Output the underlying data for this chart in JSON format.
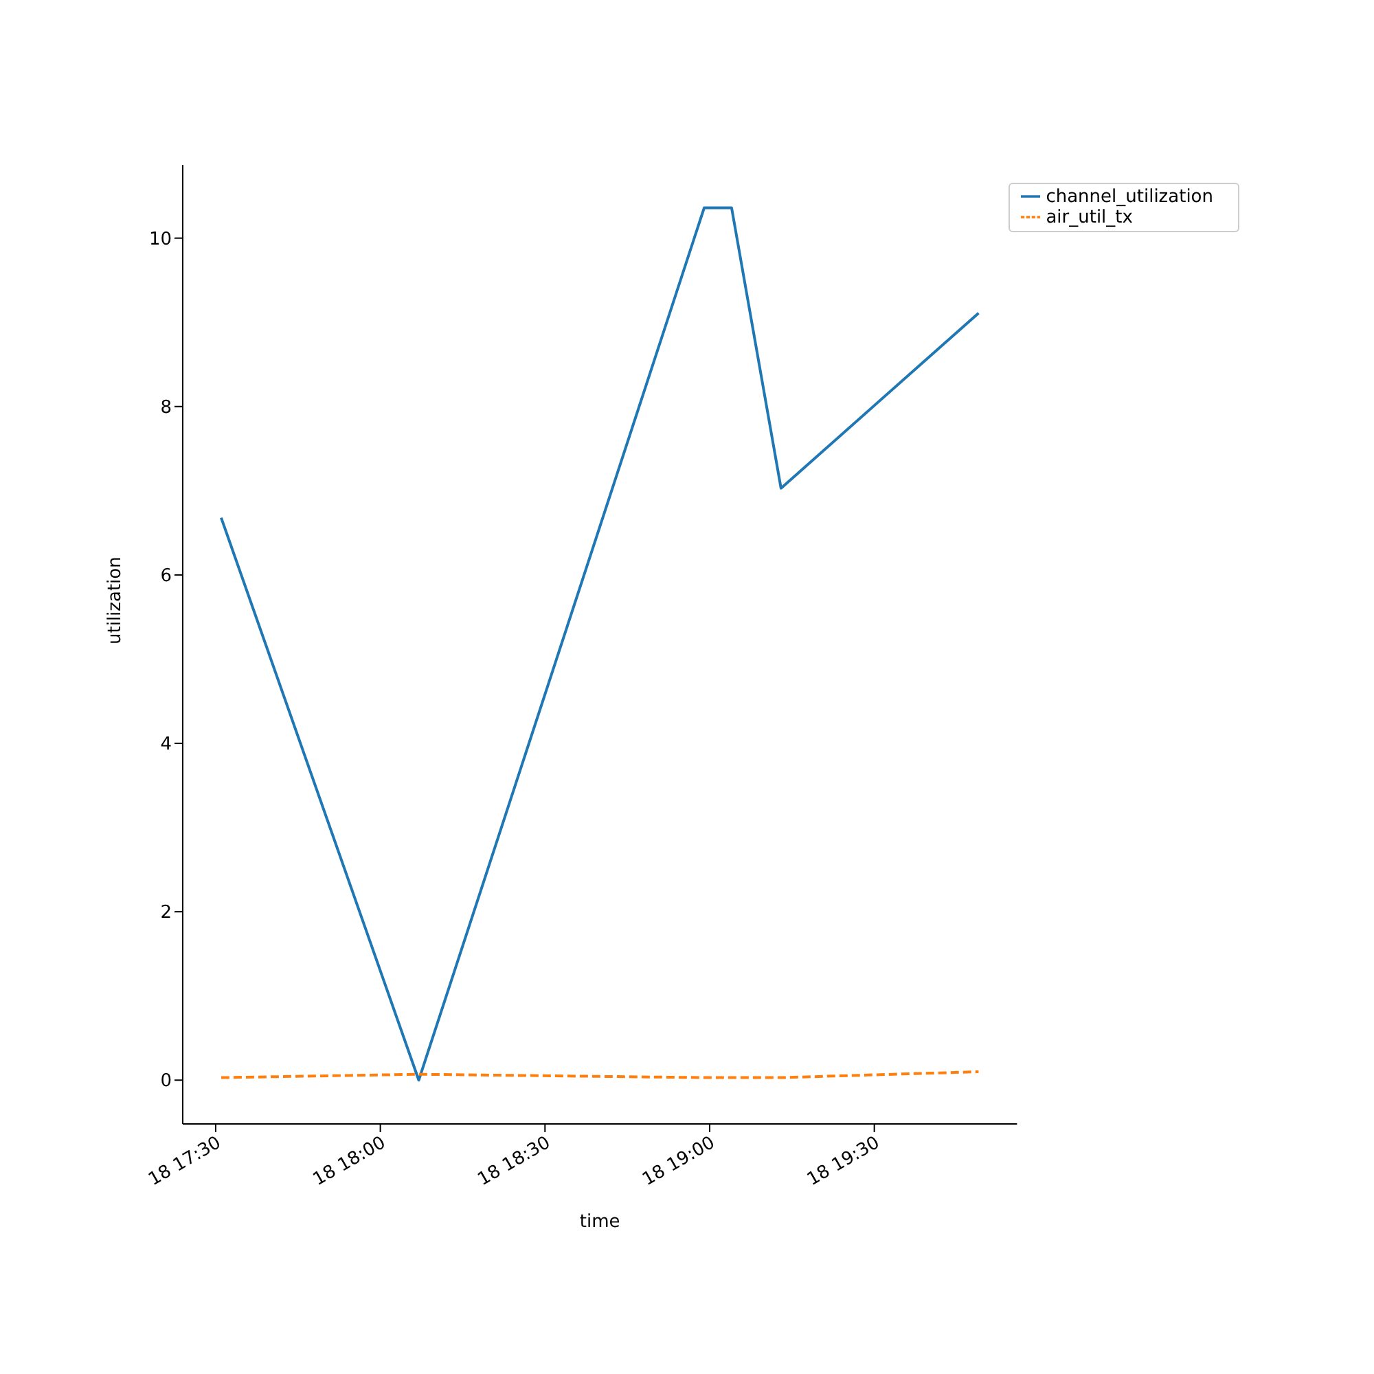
{
  "chart_data": {
    "type": "line",
    "xlabel": "time",
    "ylabel": "utilization",
    "x": [
      "2000-01-18T17:31",
      "2000-01-18T18:07",
      "2000-01-18T18:59",
      "2000-01-18T19:04",
      "2000-01-18T19:13",
      "2000-01-18T19:49"
    ],
    "series": [
      {
        "name": "channel_utilization",
        "color": "#1f77b4",
        "values": [
          6.68,
          0.0,
          10.36,
          10.36,
          7.03,
          9.11
        ],
        "line_style": "solid"
      },
      {
        "name": "air_util_tx",
        "color": "#ff7f0e",
        "values": [
          0.03,
          0.07,
          0.03,
          0.03,
          0.03,
          0.1
        ],
        "line_style": "dashed"
      }
    ],
    "xlim": [
      "2000-01-18T17:24",
      "2000-01-18T19:56"
    ],
    "xticks": [
      {
        "value": "2000-01-18T17:30",
        "label": "18 17:30"
      },
      {
        "value": "2000-01-18T18:00",
        "label": "18 18:00"
      },
      {
        "value": "2000-01-18T18:30",
        "label": "18 18:30"
      },
      {
        "value": "2000-01-18T19:00",
        "label": "18 19:00"
      },
      {
        "value": "2000-01-18T19:30",
        "label": "18 19:30"
      }
    ],
    "ylim": [
      -0.52,
      10.87
    ],
    "yticks": [
      0,
      2,
      4,
      6,
      8,
      10
    ],
    "legend": "top right",
    "grid": false,
    "marker": "none"
  }
}
